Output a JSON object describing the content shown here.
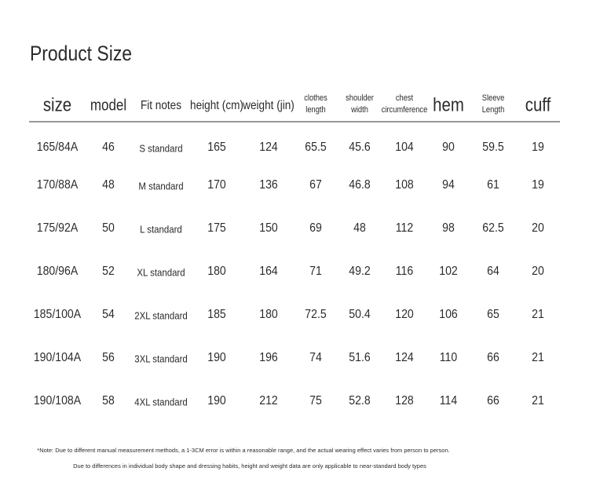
{
  "title": "Product Size",
  "table": {
    "header": [
      [
        "size"
      ],
      [
        "model"
      ],
      [
        "Fit notes"
      ],
      [
        "height (cm)"
      ],
      [
        "weight (jin)"
      ],
      [
        "clothes",
        "length"
      ],
      [
        "shoulder",
        "width"
      ],
      [
        "chest",
        "circumference"
      ],
      [
        "hem"
      ],
      [
        "Sleeve",
        "Length"
      ],
      [
        "cuff"
      ]
    ],
    "rows": [
      [
        "165/84A",
        "46",
        "S standard",
        "165",
        "124",
        "65.5",
        "45.6",
        "104",
        "90",
        "59.5",
        "19"
      ],
      [
        "170/88A",
        "48",
        "M standard",
        "170",
        "136",
        "67",
        "46.8",
        "108",
        "94",
        "61",
        "19"
      ],
      [
        "175/92A",
        "50",
        "L standard",
        "175",
        "150",
        "69",
        "48",
        "112",
        "98",
        "62.5",
        "20"
      ],
      [
        "180/96A",
        "52",
        "XL standard",
        "180",
        "164",
        "71",
        "49.2",
        "116",
        "102",
        "64",
        "20"
      ],
      [
        "185/100A",
        "54",
        "2XL standard",
        "185",
        "180",
        "72.5",
        "50.4",
        "120",
        "106",
        "65",
        "21"
      ],
      [
        "190/104A",
        "56",
        "3XL standard",
        "190",
        "196",
        "74",
        "51.6",
        "124",
        "110",
        "66",
        "21"
      ],
      [
        "190/108A",
        "58",
        "4XL standard",
        "190",
        "212",
        "75",
        "52.8",
        "128",
        "114",
        "66",
        "21"
      ]
    ]
  },
  "notes": [
    "*Note: Due to different manual measurement methods, a 1-3CM error is within a reasonable range, and the actual wearing effect varies from person to person.",
    "Due to differences in individual body shape and dressing habits, height and weight data are only applicable to near-standard body types"
  ]
}
